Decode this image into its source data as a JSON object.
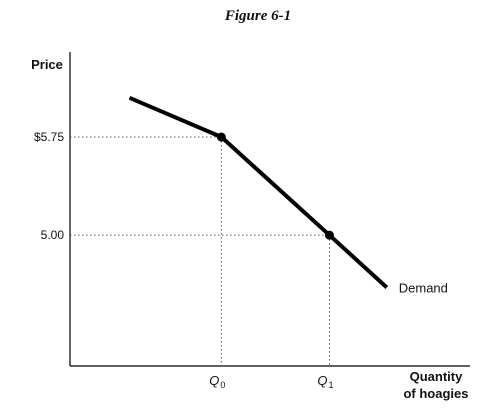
{
  "chart_data": {
    "type": "line",
    "title": "Figure 6-1",
    "ylabel": "Price",
    "xlabel_line1": "Quantity",
    "xlabel_line2": "of hoagies",
    "y_ticks": [
      {
        "label": "$5.75",
        "value": 5.75
      },
      {
        "label": "5.00",
        "value": 5.0
      }
    ],
    "x_ticks": [
      {
        "label": "Q",
        "sub": "0",
        "value": 1
      },
      {
        "label": "Q",
        "sub": "1",
        "value": 2
      }
    ],
    "xlim": [
      -0.4,
      3.3
    ],
    "ylim": [
      4.0,
      6.4
    ],
    "series": [
      {
        "name": "Demand",
        "points": [
          {
            "x": 0.15,
            "y": 6.05
          },
          {
            "x": 1,
            "y": 5.75
          },
          {
            "x": 2,
            "y": 5.0
          },
          {
            "x": 2.53,
            "y": 4.6
          }
        ]
      }
    ],
    "marked_points": [
      {
        "x": 1,
        "y": 5.75
      },
      {
        "x": 2,
        "y": 5.0
      }
    ],
    "grid": false,
    "colors": {
      "line": "#000000",
      "axis": "#000000",
      "guide": "#555555"
    }
  }
}
